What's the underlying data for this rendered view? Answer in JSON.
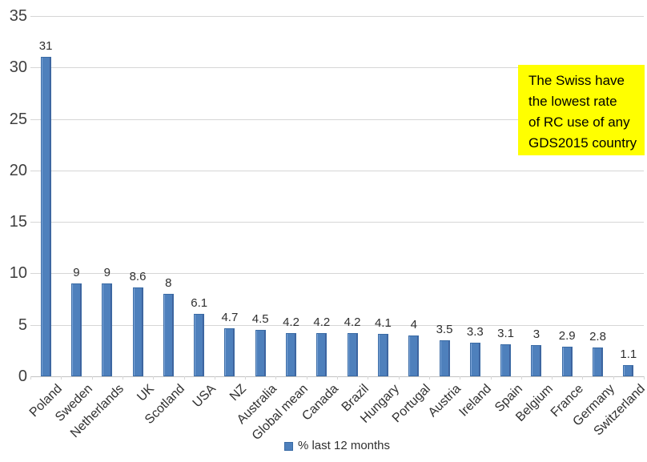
{
  "chart_data": {
    "type": "bar",
    "title": "",
    "xlabel": "",
    "ylabel": "",
    "categories": [
      "Poland",
      "Sweden",
      "Netherlands",
      "UK",
      "Scotland",
      "USA",
      "NZ",
      "Australia",
      "Global mean",
      "Canada",
      "Brazil",
      "Hungary",
      "Portugal",
      "Austria",
      "Ireland",
      "Spain",
      "Belgium",
      "France",
      "Germany",
      "Switzerland"
    ],
    "values": [
      31,
      9,
      9,
      8.6,
      8,
      6.1,
      4.7,
      4.5,
      4.2,
      4.2,
      4.2,
      4.1,
      4,
      3.5,
      3.3,
      3.1,
      3,
      2.9,
      2.8,
      1.1
    ],
    "value_labels": [
      "31",
      "9",
      "9",
      "8.6",
      "8",
      "6.1",
      "4.7",
      "4.5",
      "4.2",
      "4.2",
      "4.2",
      "4.1",
      "4",
      "3.5",
      "3.3",
      "3.1",
      "3",
      "2.9",
      "2.8",
      "1.1"
    ],
    "ylim": [
      0,
      35
    ],
    "yticks": [
      0,
      5,
      10,
      15,
      20,
      25,
      30,
      35
    ],
    "grid": true,
    "legend": {
      "position": "bottom",
      "entries": [
        {
          "label": "% last 12 months",
          "color": "#4e80bc"
        }
      ]
    }
  },
  "annotation": {
    "lines": [
      "The Swiss have",
      "the lowest rate",
      "of RC use of any",
      "GDS2015 country"
    ],
    "background": "#ffff00",
    "text_color": "#000000"
  },
  "colors": {
    "bar_fill": "#4e80bc",
    "bar_border": "#3a6ba5",
    "gridline": "#d6d6d6",
    "axis_line": "#c3c3c3",
    "text": "#3f3f3f",
    "background": "#ffffff"
  }
}
